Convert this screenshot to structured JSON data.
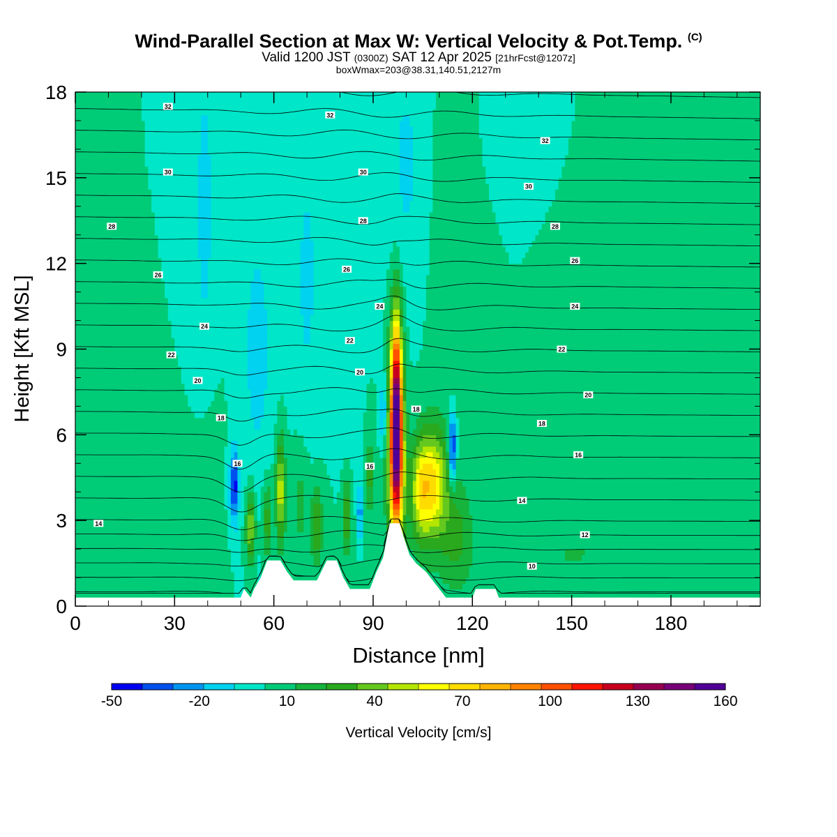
{
  "header": {
    "title": "Wind-Parallel Section at Max W: Vertical Velocity & Pot.Temp.",
    "title_mark": "(C)",
    "valid_prefix": "Valid 1200 JST",
    "valid_utc": "(0300Z)",
    "valid_date": "SAT 12 Apr 2025",
    "forecast": "[21hrFcst@1207z]",
    "box_info": "boxWmax=203@38.31,140.51,2127m"
  },
  "chart_data": {
    "type": "heatmap",
    "xlabel": "Distance [nm]",
    "ylabel": "Height [Kft MSL]",
    "xlim": [
      0,
      207
    ],
    "ylim": [
      0,
      18
    ],
    "x_ticks": [
      0,
      30,
      60,
      90,
      120,
      150,
      180
    ],
    "y_ticks": [
      0,
      3,
      6,
      9,
      12,
      15,
      18
    ],
    "colorbar": {
      "label": "Vertical Velocity [cm/s]",
      "min": -50,
      "max": 160,
      "step": 10,
      "tick_labels": [
        "-50",
        "-20",
        "10",
        "40",
        "70",
        "100",
        "130",
        "160"
      ],
      "colors": [
        "#0000f0",
        "#0050f0",
        "#0096f0",
        "#00d2f0",
        "#00e6c8",
        "#00cc78",
        "#16b43c",
        "#2aa81e",
        "#64c81e",
        "#b4e600",
        "#ffff00",
        "#ffdc00",
        "#ffb400",
        "#ff8200",
        "#ff5000",
        "#ff1400",
        "#c8001e",
        "#960050",
        "#780078",
        "#500096"
      ]
    },
    "background_value": 0,
    "features": [
      {
        "x": 97,
        "y": 7.0,
        "sx": 1.3,
        "sy": 2.3,
        "value": 130
      },
      {
        "x": 97,
        "y": 4.5,
        "sx": 1.8,
        "sy": 2.0,
        "value": 65
      },
      {
        "x": 108,
        "y": 4.3,
        "sx": 3.2,
        "sy": 1.4,
        "value": 60
      },
      {
        "x": 104,
        "y": 4.0,
        "sx": 2.0,
        "sy": 1.2,
        "value": 35
      },
      {
        "x": 62,
        "y": 4.0,
        "sx": 1.0,
        "sy": 1.3,
        "value": 48
      },
      {
        "x": 53,
        "y": 2.8,
        "sx": 1.0,
        "sy": 0.9,
        "value": 42
      },
      {
        "x": 58,
        "y": 3.0,
        "sx": 1.0,
        "sy": 1.0,
        "value": 28
      },
      {
        "x": 73,
        "y": 2.8,
        "sx": 1.3,
        "sy": 1.0,
        "value": 28
      },
      {
        "x": 82,
        "y": 3.2,
        "sx": 1.0,
        "sy": 1.0,
        "value": 30
      },
      {
        "x": 89,
        "y": 4.5,
        "sx": 0.8,
        "sy": 0.9,
        "value": 25
      },
      {
        "x": 68,
        "y": 3.6,
        "sx": 2.0,
        "sy": 1.5,
        "value": 14
      },
      {
        "x": 115,
        "y": 2.5,
        "sx": 3.0,
        "sy": 1.3,
        "value": 18
      },
      {
        "x": 150,
        "y": 1.8,
        "sx": 30,
        "sy": 2.0,
        "value": 10
      },
      {
        "x": 40,
        "y": 3.0,
        "sx": 3.0,
        "sy": 2.5,
        "value": 8
      },
      {
        "x": 160,
        "y": 10.5,
        "sx": 8,
        "sy": 3.0,
        "value": 8
      },
      {
        "x": 200,
        "y": 8.0,
        "sx": 3,
        "sy": 5.0,
        "value": 8
      },
      {
        "x": 115,
        "y": 12.0,
        "sx": 5,
        "sy": 4.0,
        "value": 6
      },
      {
        "x": 48,
        "y": 4.2,
        "sx": 1.0,
        "sy": 0.9,
        "value": -45
      },
      {
        "x": 114,
        "y": 5.5,
        "sx": 0.8,
        "sy": 0.9,
        "value": -50
      },
      {
        "x": 86,
        "y": 3.3,
        "sx": 0.6,
        "sy": 0.7,
        "value": -30
      },
      {
        "x": 93,
        "y": 6.8,
        "sx": 0.7,
        "sy": 0.8,
        "value": -25
      },
      {
        "x": 39,
        "y": 14.0,
        "sx": 2.2,
        "sy": 4.0,
        "value": -14
      },
      {
        "x": 55,
        "y": 9.0,
        "sx": 3.5,
        "sy": 3.5,
        "value": -14
      },
      {
        "x": 70,
        "y": 11.5,
        "sx": 3.0,
        "sy": 4.0,
        "value": -12
      },
      {
        "x": 100,
        "y": 15.5,
        "sx": 4.0,
        "sy": 3.0,
        "value": -12
      },
      {
        "x": 135,
        "y": 17.0,
        "sx": 6.0,
        "sy": 1.5,
        "value": -10
      },
      {
        "x": 82,
        "y": 9.0,
        "sx": 2.0,
        "sy": 3.0,
        "value": -10
      }
    ],
    "terrain": [
      [
        0,
        0.3
      ],
      [
        50,
        0.3
      ],
      [
        51,
        0.6
      ],
      [
        53,
        0.3
      ],
      [
        54,
        0.6
      ],
      [
        56,
        1.0
      ],
      [
        58,
        1.6
      ],
      [
        62,
        1.6
      ],
      [
        64,
        1.2
      ],
      [
        66,
        0.9
      ],
      [
        73,
        0.9
      ],
      [
        76,
        1.6
      ],
      [
        79,
        1.6
      ],
      [
        81,
        1.0
      ],
      [
        83,
        0.6
      ],
      [
        89,
        0.6
      ],
      [
        91,
        1.2
      ],
      [
        93,
        1.7
      ],
      [
        94,
        2.3
      ],
      [
        95,
        2.9
      ],
      [
        98,
        2.9
      ],
      [
        99,
        2.5
      ],
      [
        101,
        1.8
      ],
      [
        103,
        1.5
      ],
      [
        106,
        1.2
      ],
      [
        108,
        0.9
      ],
      [
        110,
        0.6
      ],
      [
        112,
        0.3
      ],
      [
        120,
        0.3
      ],
      [
        121,
        0.6
      ],
      [
        127,
        0.6
      ],
      [
        128,
        0.3
      ],
      [
        207,
        0.3
      ]
    ],
    "isentropes": {
      "levels": [
        8,
        9,
        10,
        11,
        12,
        13,
        14,
        15,
        16,
        17,
        18,
        19,
        20,
        21,
        22,
        23,
        24,
        25,
        26,
        27,
        28,
        29,
        30,
        31,
        32,
        33,
        34
      ],
      "labels": [
        {
          "text": "32",
          "x": 28,
          "y": 17.5
        },
        {
          "text": "32",
          "x": 77,
          "y": 17.2
        },
        {
          "text": "32",
          "x": 142,
          "y": 16.3
        },
        {
          "text": "30",
          "x": 28,
          "y": 15.2
        },
        {
          "text": "30",
          "x": 87,
          "y": 15.2
        },
        {
          "text": "30",
          "x": 137,
          "y": 14.7
        },
        {
          "text": "28",
          "x": 11,
          "y": 13.3
        },
        {
          "text": "28",
          "x": 87,
          "y": 13.5
        },
        {
          "text": "28",
          "x": 145,
          "y": 13.3
        },
        {
          "text": "26",
          "x": 25,
          "y": 11.6
        },
        {
          "text": "26",
          "x": 82,
          "y": 11.8
        },
        {
          "text": "26",
          "x": 151,
          "y": 12.1
        },
        {
          "text": "24",
          "x": 39,
          "y": 9.8
        },
        {
          "text": "24",
          "x": 92,
          "y": 10.5
        },
        {
          "text": "24",
          "x": 151,
          "y": 10.5
        },
        {
          "text": "22",
          "x": 29,
          "y": 8.8
        },
        {
          "text": "22",
          "x": 83,
          "y": 9.3
        },
        {
          "text": "22",
          "x": 147,
          "y": 9.0
        },
        {
          "text": "20",
          "x": 37,
          "y": 7.9
        },
        {
          "text": "20",
          "x": 86,
          "y": 8.2
        },
        {
          "text": "20",
          "x": 155,
          "y": 7.4
        },
        {
          "text": "18",
          "x": 44,
          "y": 6.6
        },
        {
          "text": "18",
          "x": 103,
          "y": 6.9
        },
        {
          "text": "18",
          "x": 141,
          "y": 6.4
        },
        {
          "text": "16",
          "x": 49,
          "y": 5.0
        },
        {
          "text": "16",
          "x": 89,
          "y": 4.9
        },
        {
          "text": "16",
          "x": 152,
          "y": 5.3
        },
        {
          "text": "14",
          "x": 7,
          "y": 2.9
        },
        {
          "text": "14",
          "x": 135,
          "y": 3.7
        },
        {
          "text": "12",
          "x": 154,
          "y": 2.5
        },
        {
          "text": "10",
          "x": 138,
          "y": 1.4
        }
      ]
    }
  }
}
